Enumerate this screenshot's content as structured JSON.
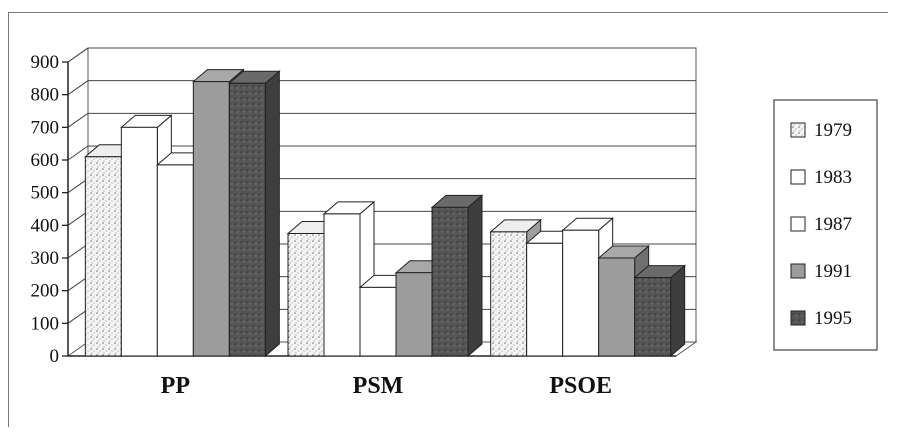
{
  "chart_data": {
    "type": "bar",
    "title": "",
    "xlabel": "",
    "ylabel": "",
    "categories": [
      "PP",
      "PSM",
      "PSOE"
    ],
    "series": [
      {
        "name": "1979",
        "values": [
          610,
          375,
          380
        ],
        "color": "#dcdcdc",
        "pattern": "stipple-light"
      },
      {
        "name": "1983",
        "values": [
          700,
          435,
          345
        ],
        "color": "#ffffff",
        "pattern": "none"
      },
      {
        "name": "1987",
        "values": [
          585,
          210,
          385
        ],
        "color": "#ffffff",
        "pattern": "none"
      },
      {
        "name": "1991",
        "values": [
          840,
          255,
          300
        ],
        "color": "#9c9c9c",
        "pattern": "none"
      },
      {
        "name": "1995",
        "values": [
          835,
          455,
          240
        ],
        "color": "#5a5a5a",
        "pattern": "stipple-dark"
      }
    ],
    "y_ticks": [
      "0",
      "100",
      "200",
      "300",
      "400",
      "500",
      "600",
      "700",
      "800",
      "900"
    ],
    "ylim": [
      0,
      900
    ],
    "grid": true,
    "legend_placement": "right",
    "style": "3d-clustered-column"
  }
}
